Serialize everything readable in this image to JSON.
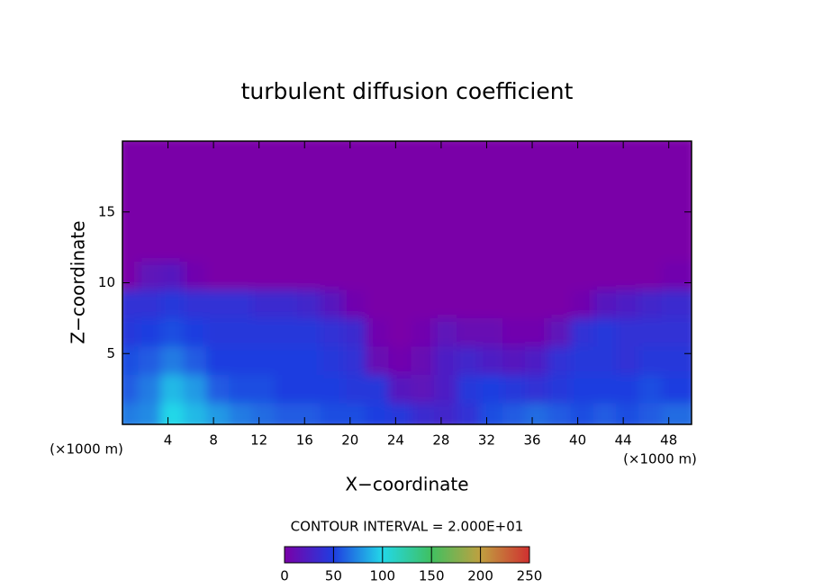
{
  "chart_data": {
    "type": "heatmap",
    "title": "turbulent diffusion coefficient",
    "x_label": "X−coordinate",
    "y_label": "Z−coordinate",
    "x_unit": "(×1000 m)",
    "y_unit": "(×1000 m)",
    "colorbar_title": "CONTOUR INTERVAL = 2.000E+01",
    "x": [
      1,
      3,
      5,
      7,
      9,
      11,
      13,
      15,
      17,
      19,
      21,
      23,
      25,
      27,
      29,
      31,
      33,
      35,
      37,
      39,
      41,
      43,
      45,
      47,
      49
    ],
    "y": [
      1,
      3,
      5,
      7,
      9,
      11,
      13,
      15,
      17,
      19
    ],
    "z": [
      [
        70,
        75,
        100,
        90,
        80,
        70,
        65,
        60,
        60,
        55,
        55,
        50,
        45,
        35,
        30,
        40,
        55,
        60,
        65,
        60,
        55,
        60,
        55,
        60,
        65
      ],
      [
        60,
        70,
        90,
        80,
        60,
        55,
        55,
        50,
        50,
        50,
        45,
        45,
        20,
        15,
        25,
        45,
        50,
        45,
        40,
        45,
        50,
        50,
        50,
        55,
        50
      ],
      [
        55,
        60,
        70,
        60,
        50,
        50,
        50,
        50,
        50,
        45,
        40,
        10,
        5,
        10,
        25,
        30,
        25,
        20,
        25,
        40,
        45,
        45,
        40,
        45,
        45
      ],
      [
        45,
        50,
        55,
        50,
        45,
        45,
        45,
        45,
        45,
        40,
        35,
        5,
        0,
        5,
        15,
        10,
        10,
        5,
        5,
        15,
        40,
        45,
        40,
        40,
        40
      ],
      [
        40,
        40,
        45,
        40,
        40,
        40,
        35,
        35,
        30,
        20,
        5,
        0,
        0,
        0,
        0,
        0,
        0,
        0,
        0,
        0,
        5,
        20,
        25,
        30,
        35
      ],
      [
        0,
        15,
        20,
        5,
        0,
        0,
        0,
        0,
        0,
        0,
        0,
        0,
        0,
        0,
        0,
        0,
        0,
        0,
        0,
        0,
        0,
        0,
        0,
        0,
        5
      ],
      [
        0,
        0,
        0,
        0,
        0,
        0,
        0,
        0,
        0,
        0,
        0,
        0,
        0,
        0,
        0,
        0,
        0,
        0,
        0,
        0,
        0,
        0,
        0,
        0,
        0
      ],
      [
        0,
        0,
        0,
        0,
        0,
        0,
        0,
        0,
        0,
        0,
        0,
        0,
        0,
        0,
        0,
        0,
        0,
        0,
        0,
        0,
        0,
        0,
        0,
        0,
        0
      ],
      [
        0,
        0,
        0,
        0,
        0,
        0,
        0,
        0,
        0,
        0,
        0,
        0,
        0,
        0,
        0,
        0,
        0,
        0,
        0,
        0,
        0,
        0,
        0,
        0,
        0
      ],
      [
        0,
        0,
        0,
        0,
        0,
        0,
        0,
        0,
        0,
        0,
        0,
        0,
        0,
        0,
        0,
        0,
        0,
        0,
        0,
        0,
        0,
        0,
        0,
        0,
        0
      ]
    ],
    "xlim": [
      0,
      50
    ],
    "ylim": [
      0,
      20
    ],
    "xticks": [
      4,
      8,
      12,
      16,
      20,
      24,
      28,
      32,
      36,
      40,
      44,
      48
    ],
    "yticks": [
      5,
      10,
      15
    ],
    "clim": [
      0,
      250
    ],
    "cticks": [
      0,
      50,
      100,
      150,
      200,
      250
    ],
    "colorscale": [
      [
        0,
        "#7a00a8"
      ],
      [
        50,
        "#1f3de0"
      ],
      [
        100,
        "#22d8e8"
      ],
      [
        150,
        "#40c060"
      ],
      [
        200,
        "#c0a040"
      ],
      [
        250,
        "#d03030"
      ]
    ]
  }
}
